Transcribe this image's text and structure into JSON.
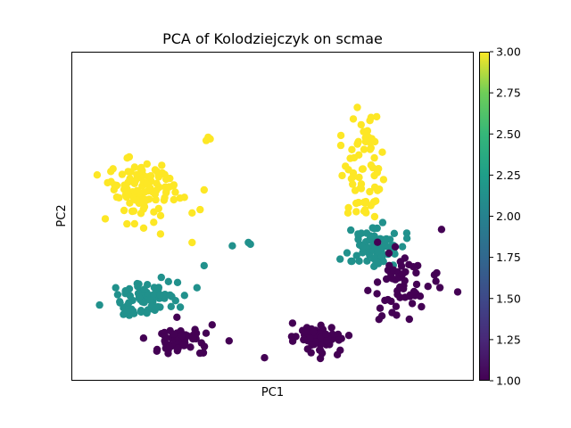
{
  "chart_data": {
    "type": "scatter",
    "title": "PCA of Kolodziejczyk on scmae",
    "xlabel": "PC1",
    "ylabel": "PC2",
    "x_ticks_shown": false,
    "y_ticks_shown": false,
    "grid": false,
    "legend": "none",
    "colorbar": {
      "range": [
        1.0,
        3.0
      ],
      "colormap": "viridis",
      "ticks": [
        "1.00",
        "1.25",
        "1.50",
        "1.75",
        "2.00",
        "2.25",
        "2.50",
        "2.75",
        "3.00"
      ]
    },
    "clusters": [
      {
        "value": 3.0,
        "color": "#fde725",
        "center": [
          0.17,
          0.58
        ],
        "spread": [
          0.045,
          0.05
        ],
        "count": 110
      },
      {
        "value": 3.0,
        "color": "#fde725",
        "center": [
          0.73,
          0.66
        ],
        "spread": [
          0.03,
          0.1
        ],
        "count": 70
      },
      {
        "value": 2.0,
        "color": "#21918c",
        "center": [
          0.19,
          0.25
        ],
        "spread": [
          0.035,
          0.03
        ],
        "count": 75
      },
      {
        "value": 2.0,
        "color": "#21918c",
        "center": [
          0.76,
          0.4
        ],
        "spread": [
          0.035,
          0.035
        ],
        "count": 75
      },
      {
        "value": 1.0,
        "color": "#440154",
        "center": [
          0.27,
          0.12
        ],
        "spread": [
          0.04,
          0.025
        ],
        "count": 55
      },
      {
        "value": 1.0,
        "color": "#440154",
        "center": [
          0.62,
          0.13
        ],
        "spread": [
          0.03,
          0.025
        ],
        "count": 65
      },
      {
        "value": 1.0,
        "color": "#440154",
        "center": [
          0.82,
          0.28
        ],
        "spread": [
          0.045,
          0.06
        ],
        "count": 60
      }
    ],
    "outliers": [
      {
        "x": 0.34,
        "y": 0.74,
        "value": 3.0
      },
      {
        "x": 0.345,
        "y": 0.735,
        "value": 3.0
      },
      {
        "x": 0.335,
        "y": 0.73,
        "value": 3.0
      },
      {
        "x": 0.33,
        "y": 0.58,
        "value": 3.0
      },
      {
        "x": 0.3,
        "y": 0.51,
        "value": 3.0
      },
      {
        "x": 0.3,
        "y": 0.42,
        "value": 3.0
      },
      {
        "x": 0.32,
        "y": 0.52,
        "value": 3.0
      },
      {
        "x": 0.4,
        "y": 0.41,
        "value": 2.0
      },
      {
        "x": 0.44,
        "y": 0.42,
        "value": 2.0
      },
      {
        "x": 0.445,
        "y": 0.415,
        "value": 2.0
      },
      {
        "x": 0.33,
        "y": 0.35,
        "value": 2.0
      },
      {
        "x": 0.07,
        "y": 0.23,
        "value": 2.0
      },
      {
        "x": 0.48,
        "y": 0.07,
        "value": 1.0
      },
      {
        "x": 0.35,
        "y": 0.17,
        "value": 1.0
      },
      {
        "x": 0.55,
        "y": 0.12,
        "value": 1.0
      },
      {
        "x": 0.92,
        "y": 0.46,
        "value": 1.0
      },
      {
        "x": 0.96,
        "y": 0.27,
        "value": 1.0
      }
    ]
  }
}
